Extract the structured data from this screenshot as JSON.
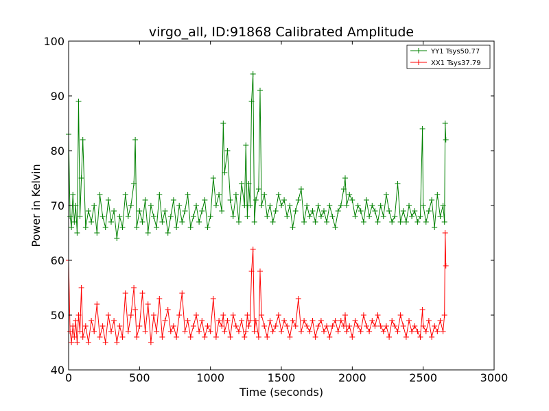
{
  "chart_data": {
    "type": "line",
    "title": "virgo_all, ID:91868 Calibrated Amplitude",
    "xlabel": "Time (seconds)",
    "ylabel": "Power in Kelvin",
    "xlim": [
      0,
      3000
    ],
    "ylim": [
      40,
      100
    ],
    "xticks": [
      "0",
      "500",
      "1000",
      "1500",
      "2000",
      "2500",
      "3000"
    ],
    "yticks": [
      "40",
      "50",
      "60",
      "70",
      "80",
      "90",
      "100"
    ],
    "grid": false,
    "legend_position": "top-right",
    "marker": "plus",
    "series": [
      {
        "name": "YY1 Tsys50.77",
        "color": "#008000",
        "x": [
          0,
          10,
          20,
          30,
          40,
          50,
          60,
          70,
          80,
          90,
          100,
          120,
          140,
          160,
          180,
          200,
          220,
          240,
          260,
          280,
          300,
          320,
          340,
          360,
          380,
          400,
          420,
          440,
          460,
          470,
          480,
          500,
          520,
          540,
          560,
          580,
          600,
          620,
          640,
          660,
          680,
          700,
          720,
          740,
          760,
          780,
          800,
          820,
          840,
          860,
          880,
          900,
          920,
          940,
          960,
          980,
          1000,
          1020,
          1040,
          1060,
          1080,
          1090,
          1100,
          1120,
          1140,
          1160,
          1180,
          1200,
          1220,
          1240,
          1250,
          1260,
          1270,
          1280,
          1290,
          1300,
          1310,
          1320,
          1340,
          1350,
          1360,
          1380,
          1400,
          1420,
          1440,
          1460,
          1480,
          1500,
          1520,
          1540,
          1560,
          1580,
          1600,
          1620,
          1640,
          1660,
          1680,
          1700,
          1720,
          1740,
          1760,
          1780,
          1800,
          1820,
          1840,
          1860,
          1880,
          1900,
          1920,
          1940,
          1950,
          1960,
          1980,
          2000,
          2020,
          2040,
          2060,
          2080,
          2100,
          2120,
          2140,
          2160,
          2180,
          2200,
          2220,
          2240,
          2260,
          2280,
          2300,
          2320,
          2340,
          2360,
          2380,
          2400,
          2420,
          2440,
          2460,
          2480,
          2495,
          2500,
          2520,
          2540,
          2560,
          2580,
          2600,
          2620,
          2640,
          2650,
          2655,
          2660
        ],
        "values": [
          83,
          68,
          66,
          72,
          67,
          70,
          65,
          89,
          68,
          75,
          82,
          66,
          69,
          67,
          70,
          65,
          72,
          68,
          66,
          71,
          67,
          69,
          64,
          68,
          66,
          72,
          68,
          70,
          74,
          82,
          66,
          69,
          67,
          71,
          65,
          70,
          68,
          66,
          72,
          67,
          69,
          65,
          68,
          71,
          66,
          70,
          67,
          69,
          72,
          66,
          68,
          70,
          67,
          69,
          71,
          66,
          68,
          75,
          70,
          72,
          69,
          85,
          76,
          80,
          71,
          68,
          72,
          67,
          74,
          70,
          81,
          68,
          74,
          70,
          89,
          94,
          67,
          71,
          73,
          91,
          70,
          72,
          68,
          70,
          67,
          69,
          72,
          70,
          71,
          68,
          70,
          66,
          69,
          71,
          73,
          67,
          70,
          68,
          69,
          67,
          70,
          68,
          69,
          67,
          70,
          68,
          66,
          69,
          70,
          73,
          75,
          70,
          72,
          71,
          68,
          70,
          69,
          67,
          71,
          68,
          70,
          69,
          67,
          70,
          68,
          72,
          69,
          67,
          68,
          74,
          67,
          69,
          67,
          70,
          68,
          69,
          67,
          68,
          84,
          70,
          67,
          69,
          71,
          66,
          72,
          68,
          70,
          67,
          85,
          82
        ]
      },
      {
        "name": "XX1 Tsys37.79",
        "color": "#ff0000",
        "x": [
          0,
          10,
          20,
          30,
          40,
          50,
          60,
          70,
          80,
          90,
          100,
          120,
          140,
          160,
          180,
          200,
          220,
          240,
          260,
          280,
          300,
          320,
          340,
          360,
          380,
          400,
          420,
          440,
          460,
          470,
          480,
          500,
          520,
          540,
          560,
          580,
          600,
          620,
          640,
          660,
          680,
          700,
          720,
          740,
          760,
          780,
          800,
          820,
          840,
          860,
          880,
          900,
          920,
          940,
          960,
          980,
          1000,
          1020,
          1040,
          1060,
          1080,
          1090,
          1100,
          1120,
          1140,
          1160,
          1180,
          1200,
          1220,
          1240,
          1250,
          1260,
          1270,
          1280,
          1290,
          1300,
          1310,
          1320,
          1340,
          1350,
          1360,
          1380,
          1400,
          1420,
          1440,
          1460,
          1480,
          1500,
          1520,
          1540,
          1560,
          1580,
          1600,
          1620,
          1640,
          1660,
          1680,
          1700,
          1720,
          1740,
          1760,
          1780,
          1800,
          1820,
          1840,
          1860,
          1880,
          1900,
          1920,
          1940,
          1950,
          1960,
          1980,
          2000,
          2020,
          2040,
          2060,
          2080,
          2100,
          2120,
          2140,
          2160,
          2180,
          2200,
          2220,
          2240,
          2260,
          2280,
          2300,
          2320,
          2340,
          2360,
          2380,
          2400,
          2420,
          2440,
          2460,
          2480,
          2495,
          2500,
          2520,
          2540,
          2560,
          2580,
          2600,
          2620,
          2640,
          2650,
          2655,
          2660
        ],
        "values": [
          60,
          47,
          45,
          48,
          46,
          49,
          45,
          50,
          47,
          55,
          46,
          48,
          45,
          49,
          47,
          52,
          46,
          48,
          45,
          50,
          47,
          49,
          45,
          48,
          46,
          54,
          47,
          50,
          55,
          51,
          46,
          48,
          54,
          47,
          52,
          45,
          50,
          47,
          53,
          46,
          49,
          51,
          47,
          48,
          46,
          50,
          54,
          47,
          49,
          46,
          48,
          50,
          47,
          49,
          46,
          48,
          47,
          53,
          46,
          49,
          48,
          50,
          47,
          49,
          46,
          50,
          48,
          47,
          49,
          46,
          47,
          50,
          48,
          49,
          58,
          62,
          47,
          49,
          46,
          58,
          50,
          48,
          46,
          49,
          47,
          48,
          50,
          47,
          49,
          48,
          46,
          49,
          48,
          53,
          47,
          49,
          48,
          47,
          49,
          46,
          48,
          49,
          47,
          48,
          46,
          48,
          49,
          47,
          49,
          48,
          50,
          47,
          48,
          46,
          49,
          48,
          47,
          50,
          48,
          47,
          49,
          48,
          50,
          48,
          47,
          48,
          46,
          49,
          48,
          47,
          50,
          48,
          46,
          49,
          47,
          48,
          47,
          46,
          51,
          48,
          47,
          49,
          46,
          48,
          47,
          49,
          47,
          50,
          65,
          59
        ]
      }
    ]
  }
}
